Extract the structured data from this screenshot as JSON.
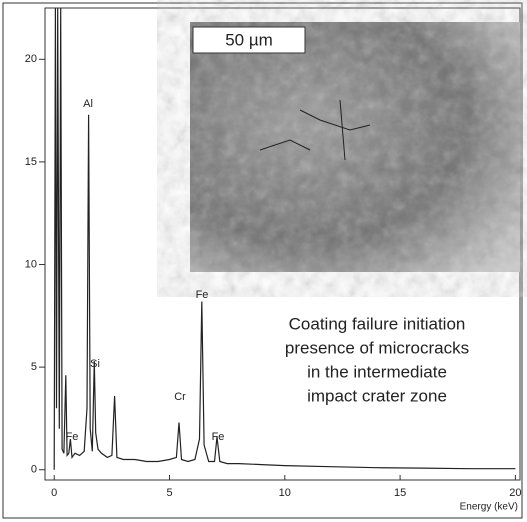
{
  "chart_data": {
    "type": "line",
    "x": [
      0,
      0.05,
      0.1,
      0.15,
      0.22,
      0.28,
      0.34,
      0.42,
      0.5,
      0.56,
      0.63,
      0.7,
      0.77,
      0.9,
      1.1,
      1.3,
      1.42,
      1.49,
      1.56,
      1.65,
      1.74,
      1.8,
      1.9,
      2.05,
      2.3,
      2.5,
      2.62,
      2.72,
      3.0,
      3.5,
      4.0,
      4.5,
      5.0,
      5.3,
      5.41,
      5.52,
      5.8,
      6.1,
      6.3,
      6.4,
      6.5,
      6.7,
      6.95,
      7.06,
      7.18,
      7.5,
      8,
      9,
      10,
      12,
      14,
      16,
      18,
      20
    ],
    "values": [
      0,
      22.5,
      3,
      22.5,
      2,
      22.5,
      1,
      0.8,
      4.6,
      0.7,
      0.8,
      1.5,
      0.6,
      0.8,
      0.7,
      0.9,
      3,
      17.3,
      2,
      0.9,
      5.3,
      1.8,
      1,
      0.8,
      0.6,
      0.7,
      3.6,
      0.6,
      0.5,
      0.5,
      0.4,
      0.4,
      0.5,
      0.6,
      2.3,
      0.5,
      0.4,
      0.5,
      1.5,
      8.2,
      1.2,
      0.4,
      0.4,
      1.6,
      0.4,
      0.3,
      0.3,
      0.25,
      0.2,
      0.15,
      0.1,
      0.08,
      0.05,
      0.05
    ],
    "color": "#222222",
    "xlim": [
      -0.4,
      20.2
    ],
    "ylim": [
      -0.5,
      22.5
    ],
    "xticks": [
      0,
      5,
      10,
      15,
      20
    ],
    "yticks": [
      0,
      5,
      10,
      15,
      20
    ],
    "xlabel": "Energy (keV)",
    "annotations": [
      "Al",
      "Si",
      "Fe",
      "Cr",
      "Fe",
      "Fe"
    ],
    "inset_scale": "50 µm",
    "caption": [
      "Coating failure initiation",
      "presence of microcracks",
      "in the intermediate",
      "impact crater zone"
    ]
  }
}
